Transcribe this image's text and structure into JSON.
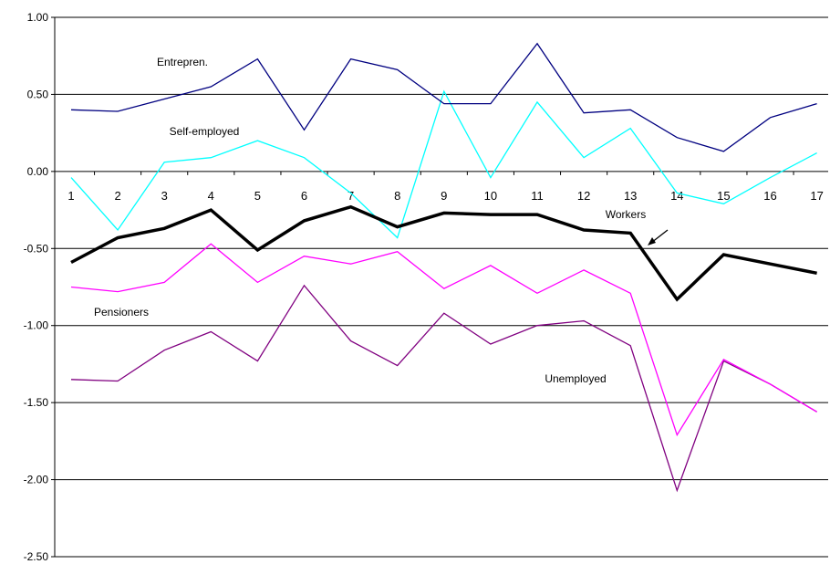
{
  "chart_data": {
    "type": "line",
    "title": "",
    "xlabel": "",
    "ylabel": "",
    "ylim": [
      -2.5,
      1.0
    ],
    "grid": "horizontal",
    "y_ticks": [
      "1.00",
      "0.50",
      "0.00",
      "-0.50",
      "-1.00",
      "-1.50",
      "-2.00",
      "-2.50"
    ],
    "y_tick_values": [
      1.0,
      0.5,
      0.0,
      -0.5,
      -1.0,
      -1.5,
      -2.0,
      -2.5
    ],
    "categories": [
      "1",
      "2",
      "3",
      "4",
      "5",
      "6",
      "7",
      "8",
      "9",
      "10",
      "11",
      "12",
      "13",
      "14",
      "15",
      "16",
      "17"
    ],
    "series": [
      {
        "name": "Entrepren.",
        "color": "#000080",
        "width": 1.3,
        "values": [
          0.4,
          0.39,
          0.47,
          0.55,
          0.73,
          0.27,
          0.73,
          0.66,
          0.44,
          0.44,
          0.83,
          0.38,
          0.4,
          0.22,
          0.13,
          0.35,
          0.44
        ]
      },
      {
        "name": "Self-employed",
        "color": "#00FFFF",
        "width": 1.3,
        "values": [
          -0.04,
          -0.38,
          0.06,
          0.09,
          0.2,
          0.09,
          -0.14,
          -0.43,
          0.52,
          -0.04,
          0.45,
          0.09,
          0.28,
          -0.14,
          -0.21,
          -0.04,
          0.12
        ]
      },
      {
        "name": "Workers",
        "color": "#000000",
        "width": 3.5,
        "values": [
          -0.59,
          -0.43,
          -0.37,
          -0.25,
          -0.51,
          -0.32,
          -0.23,
          -0.36,
          -0.27,
          -0.28,
          -0.28,
          -0.38,
          -0.4,
          -0.83,
          -0.54,
          -0.6,
          -0.66
        ]
      },
      {
        "name": "Pensioners",
        "color": "#FF00FF",
        "width": 1.3,
        "values": [
          -0.75,
          -0.78,
          -0.72,
          -0.47,
          -0.72,
          -0.55,
          -0.6,
          -0.52,
          -0.76,
          -0.61,
          -0.79,
          -0.64,
          -0.79,
          -1.71,
          -1.22,
          -1.38,
          -1.56
        ]
      },
      {
        "name": "Unemployed",
        "color": "#800080",
        "width": 1.3,
        "values": [
          -1.35,
          -1.36,
          -1.16,
          -1.04,
          -1.23,
          -0.74,
          -1.1,
          -1.26,
          -0.92,
          -1.12,
          -1.0,
          -0.97,
          -1.13,
          -2.07,
          -1.23,
          -1.38,
          -1.56
        ]
      }
    ]
  }
}
